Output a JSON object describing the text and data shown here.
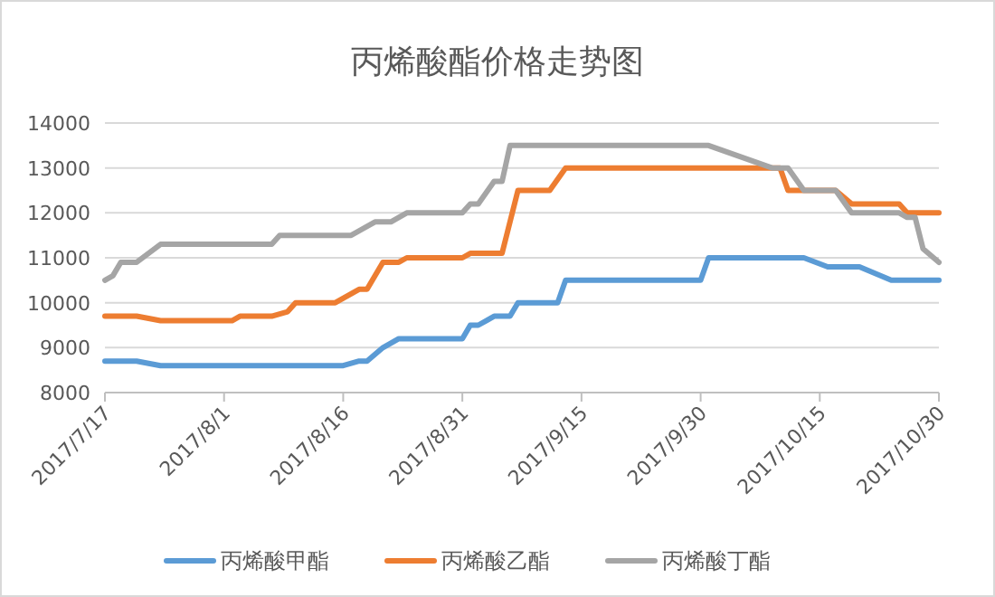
{
  "chart_data": {
    "type": "line",
    "title": "丙烯酸酯价格走势图",
    "xlim": [
      "2017-07-17",
      "2017-10-30"
    ],
    "xticks": [
      {
        "value": "2017-07-17",
        "label": "2017/7/17"
      },
      {
        "value": "2017-08-01",
        "label": "2017/8/1"
      },
      {
        "value": "2017-08-16",
        "label": "2017/8/16"
      },
      {
        "value": "2017-08-31",
        "label": "2017/8/31"
      },
      {
        "value": "2017-09-15",
        "label": "2017/9/15"
      },
      {
        "value": "2017-09-30",
        "label": "2017/9/30"
      },
      {
        "value": "2017-10-15",
        "label": "2017/10/15"
      },
      {
        "value": "2017-10-30",
        "label": "2017/10/30"
      }
    ],
    "ylim": [
      8000,
      14000
    ],
    "yticks": [
      8000,
      9000,
      10000,
      11000,
      12000,
      13000,
      14000
    ],
    "grid": "y",
    "legend": "bottom",
    "marker": "none",
    "line_style": "solid",
    "series": [
      {
        "name": "丙烯酸甲酯",
        "color": "#5b9bd5",
        "x": [
          "2017-07-17",
          "2017-07-21",
          "2017-07-24",
          "2017-08-16",
          "2017-08-18",
          "2017-08-19",
          "2017-08-21",
          "2017-08-23",
          "2017-08-31",
          "2017-09-01",
          "2017-09-02",
          "2017-09-03",
          "2017-09-04",
          "2017-09-06",
          "2017-09-07",
          "2017-09-12",
          "2017-09-13",
          "2017-09-30",
          "2017-10-01",
          "2017-10-13",
          "2017-10-16",
          "2017-10-20",
          "2017-10-24",
          "2017-10-30"
        ],
        "values": [
          8700,
          8700,
          8600,
          8600,
          8700,
          8700,
          9000,
          9200,
          9200,
          9500,
          9500,
          9600,
          9700,
          9700,
          10000,
          10000,
          10500,
          10500,
          11000,
          11000,
          10800,
          10800,
          10500,
          10500
        ]
      },
      {
        "name": "丙烯酸乙酯",
        "color": "#ed7d31",
        "x": [
          "2017-07-17",
          "2017-07-21",
          "2017-07-24",
          "2017-08-02",
          "2017-08-03",
          "2017-08-07",
          "2017-08-09",
          "2017-08-10",
          "2017-08-15",
          "2017-08-18",
          "2017-08-19",
          "2017-08-21",
          "2017-08-23",
          "2017-08-24",
          "2017-08-31",
          "2017-09-01",
          "2017-09-05",
          "2017-09-07",
          "2017-09-11",
          "2017-09-13",
          "2017-10-10",
          "2017-10-11",
          "2017-10-17",
          "2017-10-19",
          "2017-10-25",
          "2017-10-26",
          "2017-10-30"
        ],
        "values": [
          9700,
          9700,
          9600,
          9600,
          9700,
          9700,
          9800,
          10000,
          10000,
          10300,
          10300,
          10900,
          10900,
          11000,
          11000,
          11100,
          11100,
          12500,
          12500,
          13000,
          13000,
          12500,
          12500,
          12200,
          12200,
          12000,
          12000
        ]
      },
      {
        "name": "丙烯酸丁酯",
        "color": "#a5a5a5",
        "x": [
          "2017-07-17",
          "2017-07-18",
          "2017-07-19",
          "2017-07-21",
          "2017-07-24",
          "2017-08-07",
          "2017-08-08",
          "2017-08-17",
          "2017-08-20",
          "2017-08-22",
          "2017-08-24",
          "2017-08-31",
          "2017-09-01",
          "2017-09-02",
          "2017-09-04",
          "2017-09-05",
          "2017-09-06",
          "2017-10-01",
          "2017-10-09",
          "2017-10-11",
          "2017-10-13",
          "2017-10-17",
          "2017-10-19",
          "2017-10-25",
          "2017-10-26",
          "2017-10-27",
          "2017-10-28",
          "2017-10-30"
        ],
        "values": [
          10500,
          10600,
          10900,
          10900,
          11300,
          11300,
          11500,
          11500,
          11800,
          11800,
          12000,
          12000,
          12200,
          12200,
          12700,
          12700,
          13500,
          13500,
          13000,
          13000,
          12500,
          12500,
          12000,
          12000,
          11900,
          11900,
          11200,
          10900
        ]
      }
    ]
  }
}
